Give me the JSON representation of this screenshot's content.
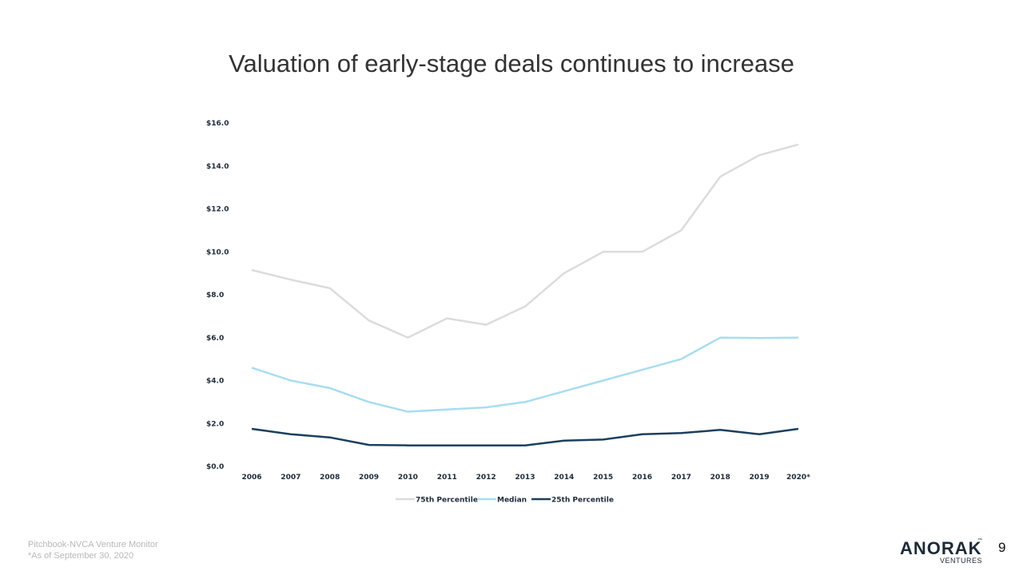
{
  "slide": {
    "title": "Valuation of early-stage deals continues to increase",
    "page_number": "9"
  },
  "footer": {
    "source": "Pitchbook-NVCA Venture Monitor",
    "note": "*As of September 30, 2020"
  },
  "logo": {
    "name": "ANORAK",
    "trademark": "™",
    "sub": "VENTURES",
    "color": "#1e2a38"
  },
  "chart_data": {
    "type": "line",
    "title": "",
    "xlabel": "",
    "ylabel": "",
    "categories": [
      "2006",
      "2007",
      "2008",
      "2009",
      "2010",
      "2011",
      "2012",
      "2013",
      "2014",
      "2015",
      "2016",
      "2017",
      "2018",
      "2019",
      "2020*"
    ],
    "ylim": [
      0,
      16
    ],
    "y_ticks": [
      0,
      2,
      4,
      6,
      8,
      10,
      12,
      14,
      16
    ],
    "y_tick_labels": [
      "$0.0",
      "$2.0",
      "$4.0",
      "$6.0",
      "$8.0",
      "$10.0",
      "$12.0",
      "$14.0",
      "$16.0"
    ],
    "grid": false,
    "legend_position": "bottom",
    "series": [
      {
        "name": "75th Percentile",
        "color": "#dcdcdc",
        "values": [
          9.15,
          8.7,
          8.3,
          6.8,
          6.0,
          6.9,
          6.6,
          7.45,
          9.0,
          10.0,
          10.0,
          11.0,
          13.5,
          14.5,
          15.0
        ]
      },
      {
        "name": "Median",
        "color": "#a8ddf0",
        "values": [
          4.6,
          4.0,
          3.65,
          3.0,
          2.55,
          2.65,
          2.75,
          3.0,
          3.5,
          4.0,
          4.5,
          5.0,
          6.0,
          5.98,
          6.0
        ]
      },
      {
        "name": "25th Percentile",
        "color": "#1c3f5e",
        "values": [
          1.75,
          1.5,
          1.35,
          1.0,
          0.98,
          0.98,
          0.98,
          0.98,
          1.2,
          1.25,
          1.5,
          1.55,
          1.7,
          1.5,
          1.75
        ]
      }
    ]
  }
}
